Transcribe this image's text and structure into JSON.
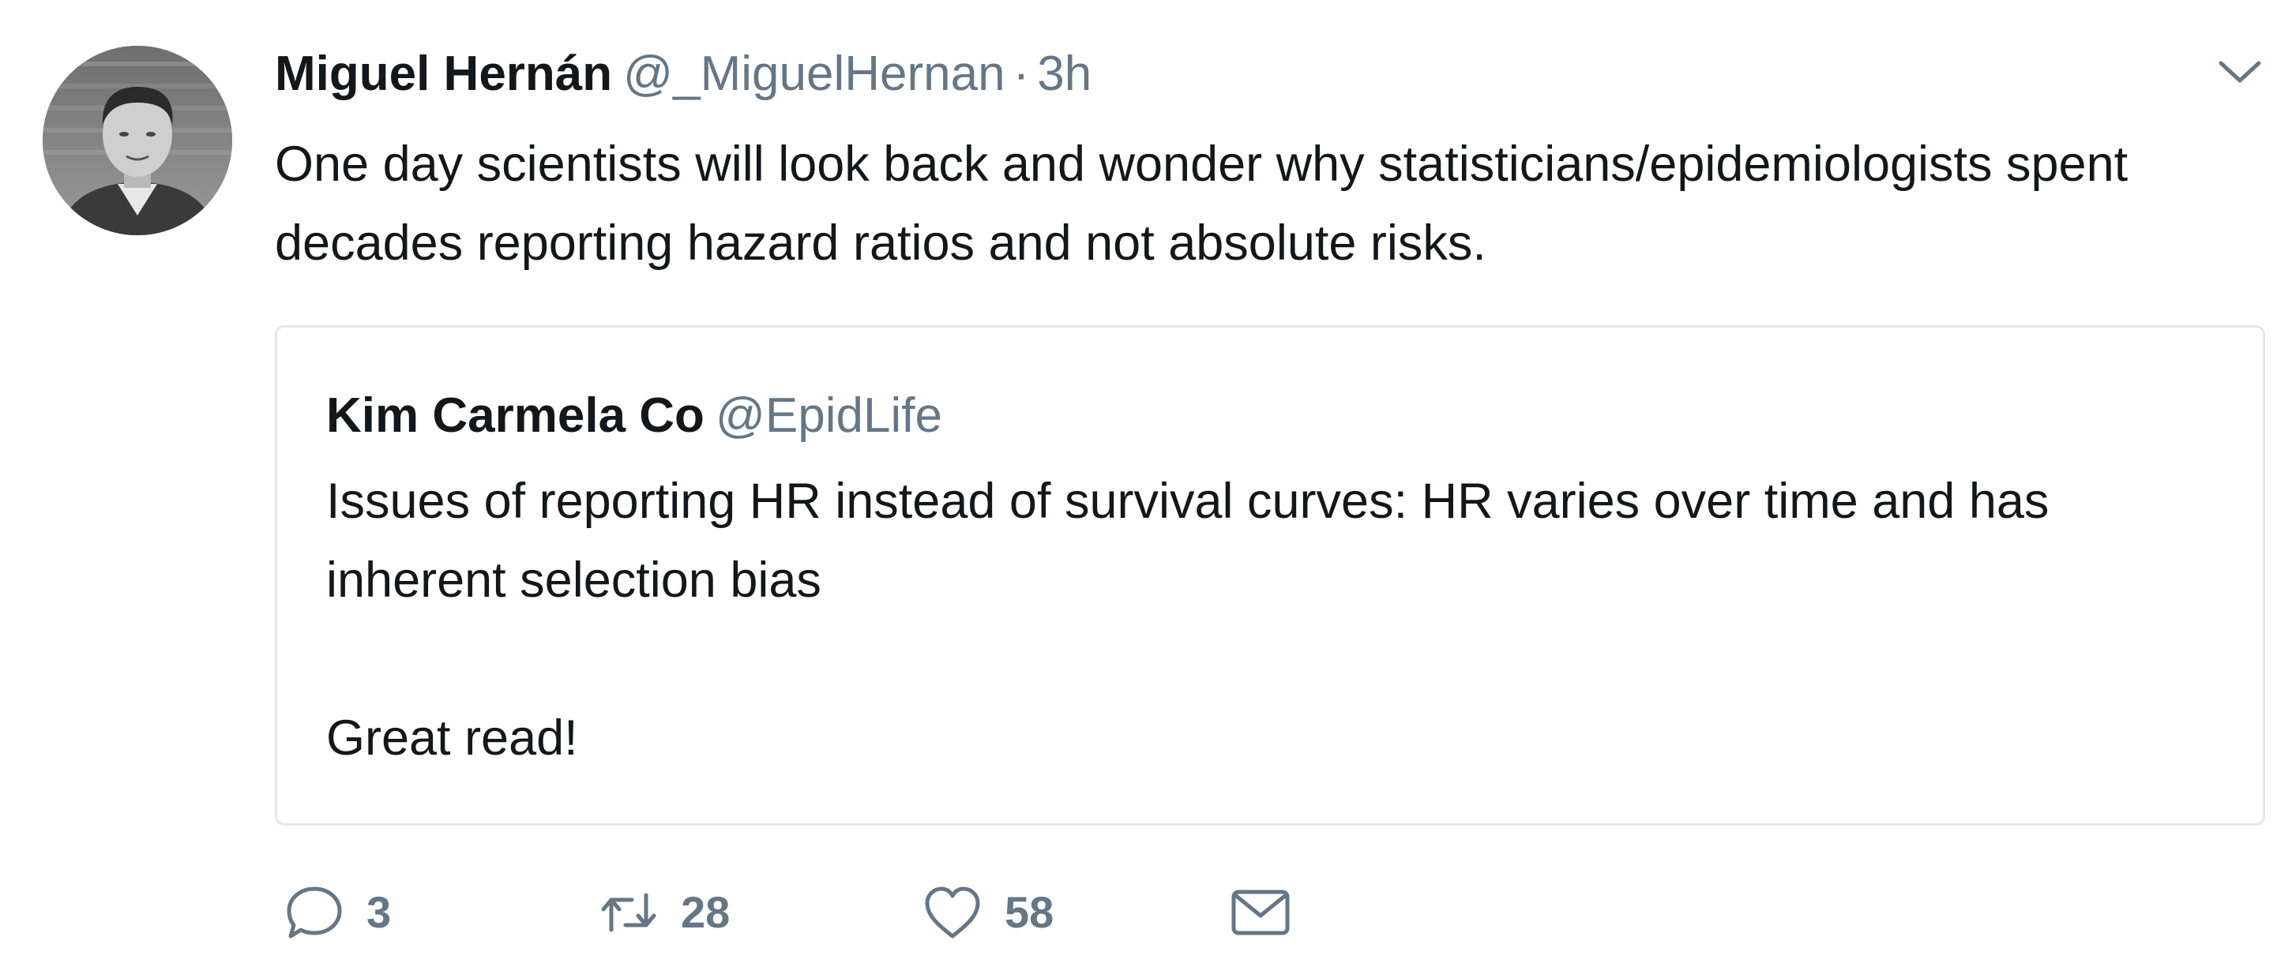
{
  "tweet": {
    "author": {
      "name": "Miguel Hernán",
      "handle": "@_MiguelHernan",
      "separator": "·",
      "timestamp": "3h"
    },
    "text": "One day scientists will look back and wonder why statisticians/epidemiologists spent decades reporting hazard ratios and not absolute risks.",
    "avatar_icon": "profile-photo",
    "menu_icon": "chevron-down-icon"
  },
  "quoted_tweet": {
    "name": "Kim Carmela Co",
    "handle": "@EpidLife",
    "text_line1": "Issues of reporting HR instead of survival curves: HR varies over time and has inherent selection bias",
    "text_line2": "Great read!"
  },
  "actions": {
    "reply": {
      "icon": "reply-icon",
      "count": "3"
    },
    "retweet": {
      "icon": "retweet-icon",
      "count": "28"
    },
    "like": {
      "icon": "heart-icon",
      "count": "58"
    },
    "direct_message": {
      "icon": "envelope-icon"
    }
  },
  "colors": {
    "text": "#14171a",
    "secondary": "#657786",
    "border": "#e1e8ed"
  }
}
